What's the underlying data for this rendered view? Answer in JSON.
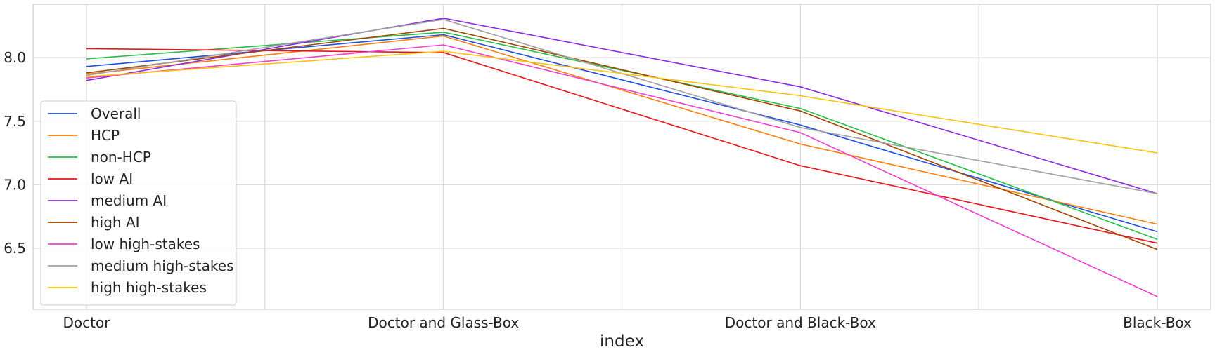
{
  "chart_data": {
    "type": "line",
    "title": "",
    "xlabel": "index",
    "ylabel": "",
    "categories": [
      "Doctor",
      "Doctor and Glass-Box",
      "Doctor and Black-Box",
      "Black-Box"
    ],
    "ylim": [
      6.02,
      8.42
    ],
    "yticks": [
      "6.5",
      "7.0",
      "7.5",
      "8.0"
    ],
    "ytick_values": [
      6.5,
      7.0,
      7.5,
      8.0
    ],
    "grid": true,
    "legend_position": "lower-left",
    "series": [
      {
        "name": "Overall",
        "color": "#1f4fe0",
        "values": [
          7.93,
          8.18,
          7.47,
          6.63
        ]
      },
      {
        "name": "HCP",
        "color": "#ff7f0e",
        "values": [
          7.87,
          8.17,
          7.32,
          6.69
        ]
      },
      {
        "name": "non-HCP",
        "color": "#22c04a",
        "values": [
          7.99,
          8.2,
          7.6,
          6.57
        ]
      },
      {
        "name": "low AI",
        "color": "#e8141c",
        "values": [
          8.07,
          8.04,
          7.15,
          6.54
        ]
      },
      {
        "name": "medium AI",
        "color": "#8a2be2",
        "values": [
          7.82,
          8.31,
          7.77,
          6.93
        ]
      },
      {
        "name": "high AI",
        "color": "#a34400",
        "values": [
          7.88,
          8.23,
          7.58,
          6.49
        ]
      },
      {
        "name": "low high-stakes",
        "color": "#f03ed0",
        "values": [
          7.84,
          8.1,
          7.41,
          6.12
        ]
      },
      {
        "name": "medium high-stakes",
        "color": "#a0a0a0",
        "values": [
          7.86,
          8.3,
          7.45,
          6.93
        ]
      },
      {
        "name": "high high-stakes",
        "color": "#ffc20e",
        "values": [
          7.85,
          8.05,
          7.7,
          7.25
        ]
      }
    ]
  }
}
